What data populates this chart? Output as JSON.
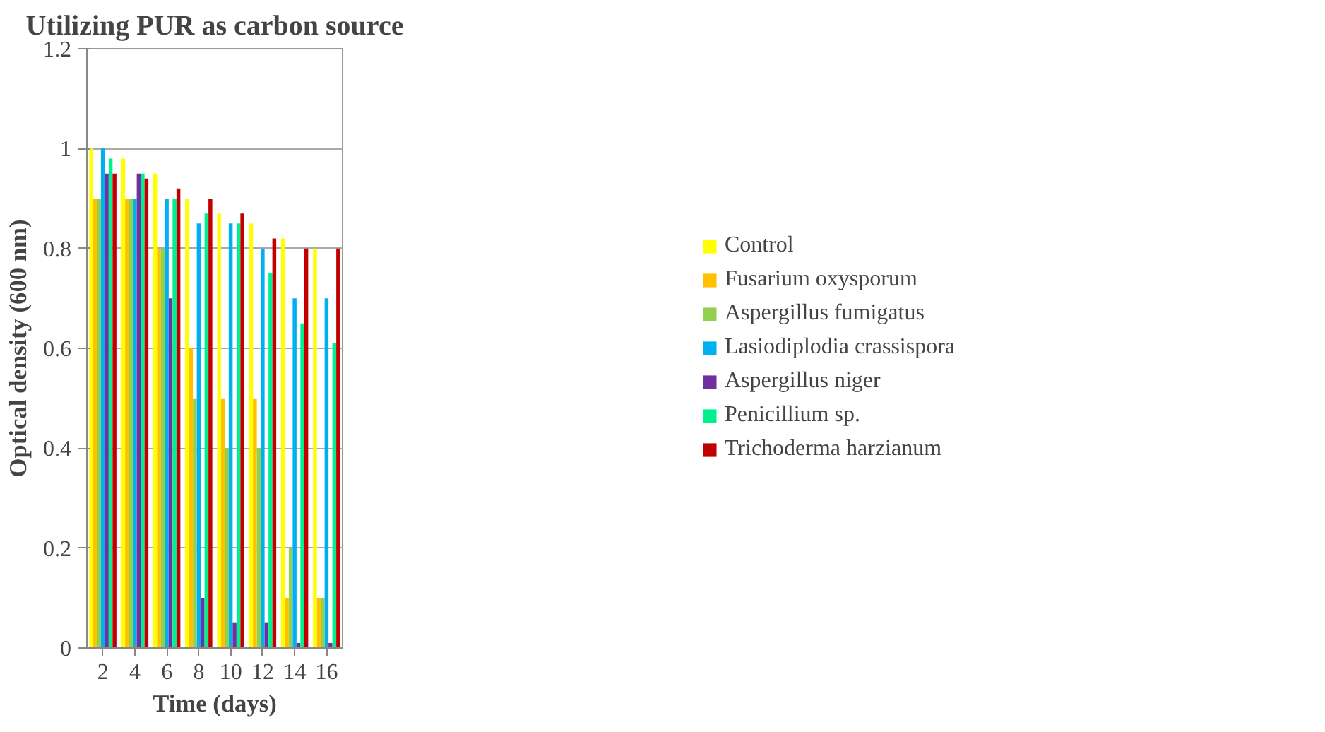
{
  "chart_data": {
    "type": "bar",
    "title": "Utilizing PUR as carbon source",
    "xlabel": "Time (days)",
    "ylabel": "Optical density (600 nm)",
    "categories": [
      "2",
      "4",
      "6",
      "8",
      "10",
      "12",
      "14",
      "16"
    ],
    "ylim": [
      0,
      1.2
    ],
    "yticks": [
      0,
      0.2,
      0.4,
      0.6,
      0.8,
      1,
      1.2
    ],
    "grid": "y",
    "legend": "right",
    "series": [
      {
        "name": "Control",
        "color": "#ffff00",
        "values": [
          1,
          0.98,
          0.95,
          0.9,
          0.87,
          0.85,
          0.82,
          0.8
        ]
      },
      {
        "name": "Fusarium oxysporum",
        "color": "#ffc000",
        "values": [
          0.9,
          0.9,
          0.8,
          0.6,
          0.5,
          0.5,
          0.1,
          0.1
        ]
      },
      {
        "name": "Aspergillus fumigatus",
        "color": "#92d050",
        "values": [
          0.9,
          0.9,
          0.8,
          0.5,
          0.4,
          0.4,
          0.2,
          0.1
        ]
      },
      {
        "name": "Lasiodiplodia crassispora",
        "color": "#00b0f0",
        "values": [
          1,
          0.9,
          0.9,
          0.85,
          0.85,
          0.8,
          0.7,
          0.7
        ]
      },
      {
        "name": "Aspergillus niger",
        "color": "#7030a0",
        "values": [
          0.95,
          0.95,
          0.7,
          0.1,
          0.05,
          0.05,
          0.01,
          0.01
        ]
      },
      {
        "name": "Penicillium sp.",
        "color": "#00f090",
        "values": [
          0.98,
          0.95,
          0.9,
          0.87,
          0.85,
          0.75,
          0.65,
          0.61
        ]
      },
      {
        "name": "Trichoderma harzianum",
        "color": "#c00000",
        "values": [
          0.95,
          0.94,
          0.92,
          0.9,
          0.87,
          0.82,
          0.8,
          0.8
        ]
      }
    ]
  }
}
